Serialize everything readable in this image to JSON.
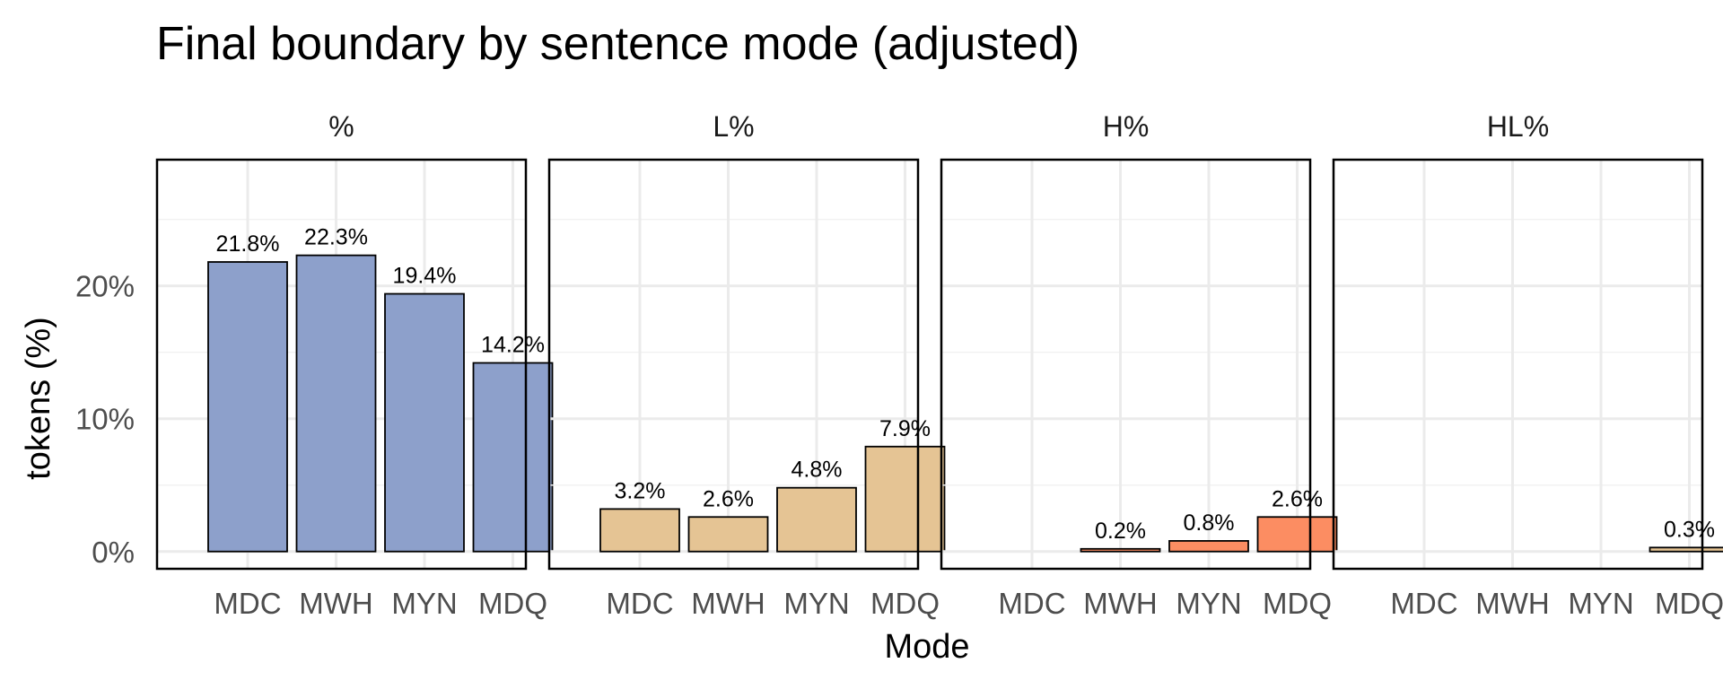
{
  "chart_data": {
    "type": "bar",
    "title": "Final boundary by sentence mode (adjusted)",
    "xlabel": "Mode",
    "ylabel": "tokens (%)",
    "ylim": [
      -1.3,
      29.5
    ],
    "yticks": [
      0,
      10,
      20
    ],
    "ytick_labels": [
      "0%",
      "10%",
      "20%"
    ],
    "grid": true,
    "categories": [
      "MDC",
      "MWH",
      "MYN",
      "MDQ"
    ],
    "panels": [
      {
        "name": "%",
        "color": "#8da0cb",
        "values": [
          21.8,
          22.3,
          19.4,
          14.2
        ],
        "labels": [
          "21.8%",
          "22.3%",
          "19.4%",
          "14.2%"
        ]
      },
      {
        "name": "L%",
        "color": "#e5c494",
        "values": [
          3.2,
          2.6,
          4.8,
          7.9
        ],
        "labels": [
          "3.2%",
          "2.6%",
          "4.8%",
          "7.9%"
        ]
      },
      {
        "name": "H%",
        "color": "#fc8d62",
        "values": [
          null,
          0.2,
          0.8,
          2.6
        ],
        "labels": [
          null,
          "0.2%",
          "0.8%",
          "2.6%"
        ]
      },
      {
        "name": "HL%",
        "color": "#e5c494",
        "values": [
          null,
          null,
          null,
          0.3
        ],
        "labels": [
          null,
          null,
          null,
          "0.3%"
        ]
      }
    ]
  }
}
